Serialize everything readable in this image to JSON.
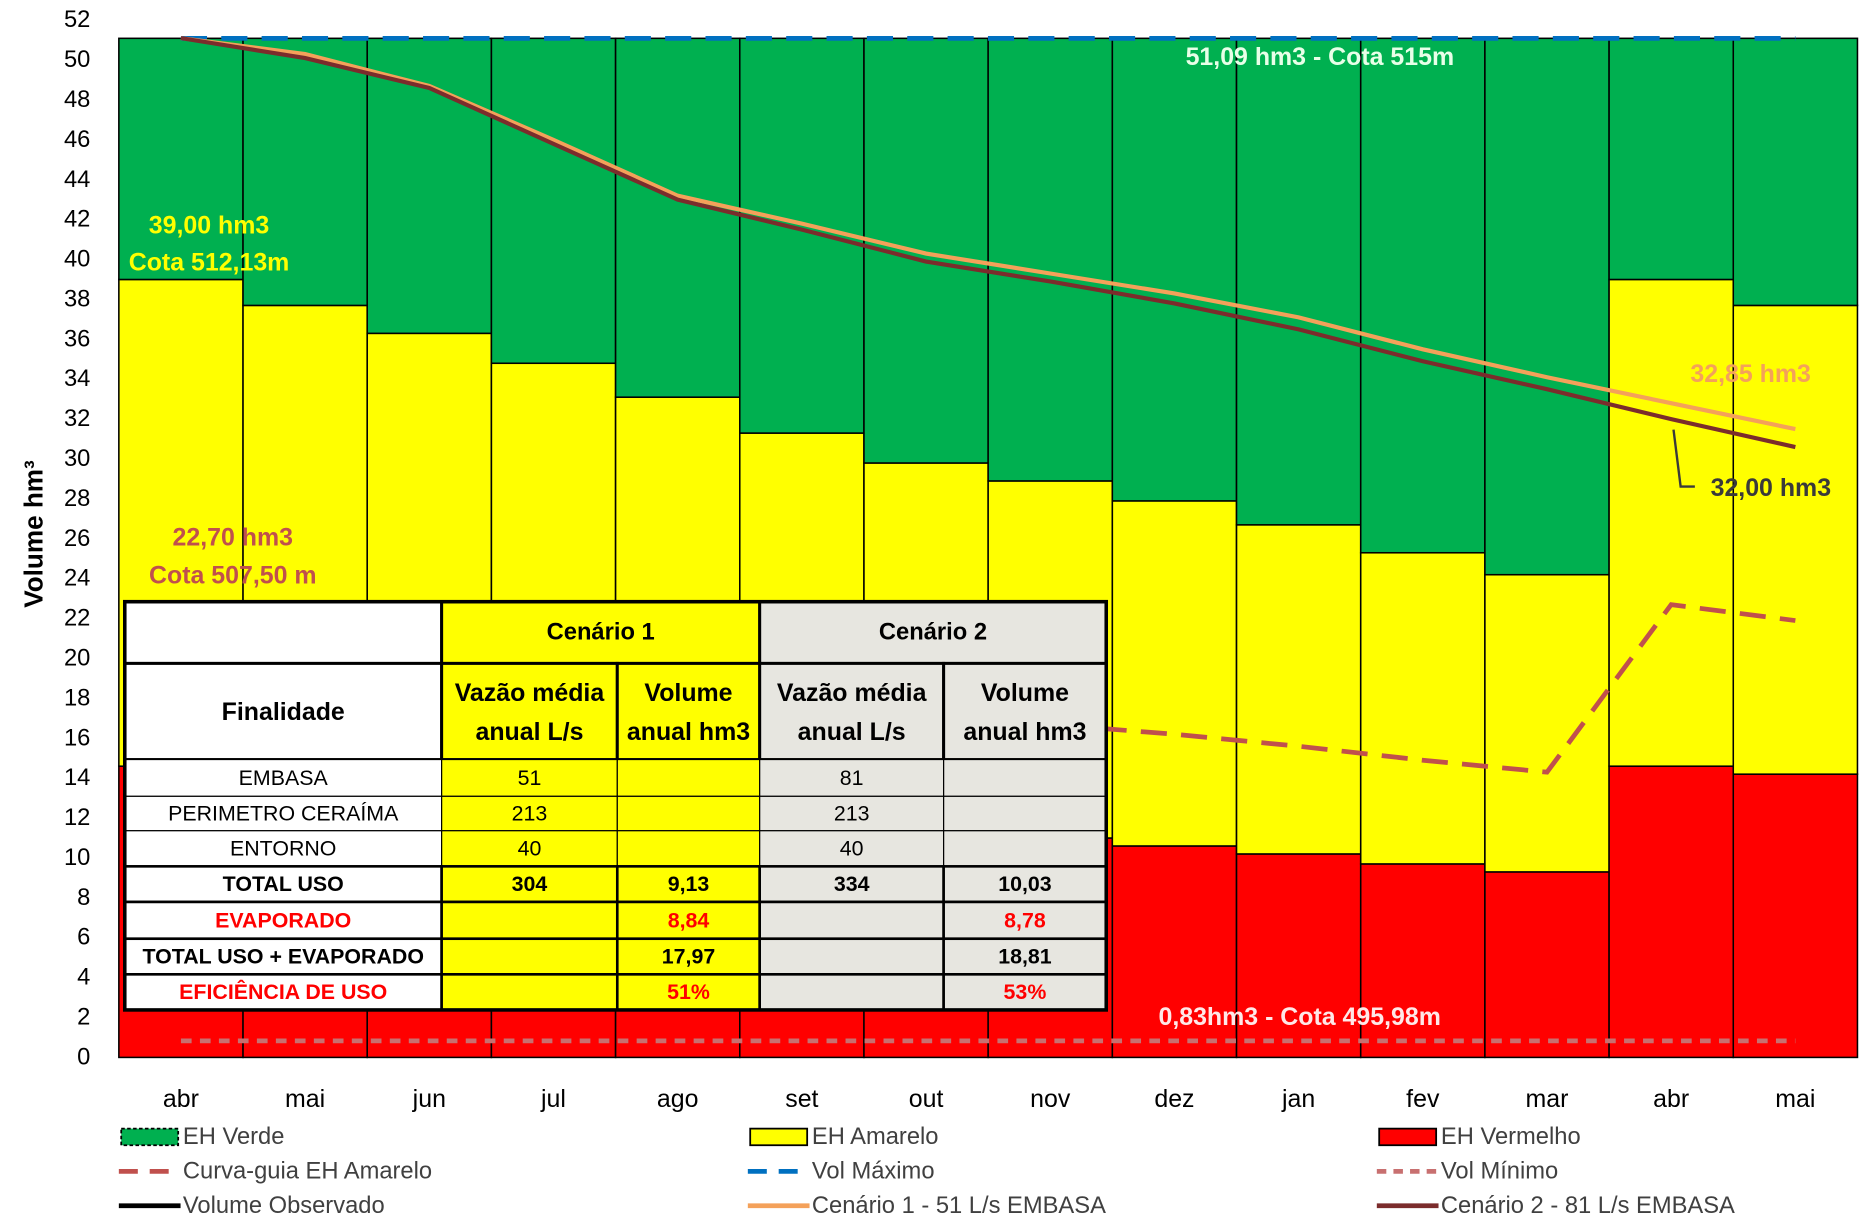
{
  "chart_data": {
    "type": "stacked-bar-line",
    "y_label": "Volume hm³",
    "categories": [
      "abr",
      "mai",
      "jun",
      "jul",
      "ago",
      "set",
      "out",
      "nov",
      "dez",
      "jan",
      "fev",
      "mar",
      "abr",
      "mai"
    ],
    "ylim": [
      0,
      52
    ],
    "yticks": [
      0,
      2,
      4,
      6,
      8,
      10,
      12,
      14,
      16,
      18,
      20,
      22,
      24,
      26,
      28,
      30,
      32,
      34,
      36,
      38,
      40,
      42,
      44,
      46,
      48,
      50,
      52
    ],
    "grid": false,
    "legend": "bottom",
    "series": [
      {
        "name": "EH Verde",
        "color": "#00b050",
        "style": "bar",
        "values": [
          12.09,
          13.39,
          14.79,
          16.29,
          17.99,
          19.79,
          21.29,
          22.19,
          23.19,
          24.39,
          25.79,
          26.89,
          12.09,
          13.39
        ]
      },
      {
        "name": "EH Amarelo",
        "color": "#ffff00",
        "style": "bar",
        "values": [
          24.4,
          23.6,
          22.7,
          21.8,
          20.6,
          19.3,
          18.3,
          17.9,
          17.3,
          16.5,
          15.6,
          14.9,
          24.4,
          23.5
        ]
      },
      {
        "name": "EH Vermelho",
        "color": "#ff0000",
        "style": "bar",
        "values": [
          14.6,
          14.1,
          13.6,
          13.0,
          12.5,
          12.0,
          11.5,
          11.0,
          10.6,
          10.2,
          9.7,
          9.3,
          14.6,
          14.2
        ]
      },
      {
        "name": "Curva-guia EH Amarelo",
        "color": "#c0504d",
        "style": "dashed",
        "values": [
          22.7,
          21.9,
          21.0,
          20.1,
          19.2,
          18.3,
          17.5,
          16.7,
          16.2,
          15.6,
          14.9,
          14.3,
          22.7,
          21.9
        ]
      },
      {
        "name": "Vol Máximo",
        "color": "#0070c0",
        "style": "dashed",
        "values": [
          51.09,
          51.09,
          51.09,
          51.09,
          51.09,
          51.09,
          51.09,
          51.09,
          51.09,
          51.09,
          51.09,
          51.09,
          51.09,
          51.09
        ]
      },
      {
        "name": "Vol Mínimo",
        "color": "#c87070",
        "style": "dotted",
        "values": [
          0.83,
          0.83,
          0.83,
          0.83,
          0.83,
          0.83,
          0.83,
          0.83,
          0.83,
          0.83,
          0.83,
          0.83,
          0.83,
          0.83
        ]
      },
      {
        "name": "Volume Observado",
        "color": "#000000",
        "style": "solid",
        "values": [
          null,
          null,
          null,
          null,
          null,
          null,
          null,
          null,
          null,
          null,
          null,
          null,
          null,
          null
        ]
      },
      {
        "name": "Cenário 1 - 51 L/s EMBASA",
        "color": "#f4a15a",
        "style": "solid",
        "values": [
          51.1,
          50.3,
          48.7,
          46.0,
          43.2,
          41.8,
          40.3,
          39.3,
          38.3,
          37.1,
          35.5,
          34.1,
          32.8,
          31.5
        ]
      },
      {
        "name": "Cenário 2 - 81 L/s EMBASA",
        "color": "#7b2c2c",
        "style": "solid",
        "values": [
          51.1,
          50.1,
          48.6,
          45.8,
          43.0,
          41.5,
          39.9,
          38.9,
          37.8,
          36.5,
          34.9,
          33.5,
          32.0,
          30.6
        ]
      }
    ],
    "annotations": [
      {
        "text": "51,09 hm3 - Cota 515m",
        "color": "#e8ffe8"
      },
      {
        "text": "39,00 hm3",
        "color": "#ffff00"
      },
      {
        "text": "Cota 512,13m",
        "color": "#ffff00"
      },
      {
        "text": "22,70 hm3",
        "color": "#c0504d"
      },
      {
        "text": "Cota 507,50 m",
        "color": "#c0504d"
      },
      {
        "text": "32,85 hm3",
        "color": "#f4a15a"
      },
      {
        "text": "32,00 hm3",
        "color": "#3a3a3a"
      },
      {
        "text": "0,83hm3 - Cota 495,98m",
        "color": "#ffe8e8"
      }
    ]
  },
  "table": {
    "header": [
      [
        null,
        "Cenário 1",
        "Cenário 2"
      ],
      [
        "Finalidade",
        [
          "Vazão média",
          "anual L/s"
        ],
        [
          "Volume",
          "anual hm3"
        ],
        [
          "Vazão média",
          "anual L/s"
        ],
        [
          "Volume",
          "anual hm3"
        ]
      ]
    ],
    "rows": [
      [
        "EMBASA",
        51,
        null,
        81,
        null
      ],
      [
        "PERIMETRO CERAÍMA",
        213,
        null,
        213,
        null
      ],
      [
        "ENTORNO",
        40,
        null,
        40,
        null
      ],
      [
        "TOTAL USO",
        304,
        "9,13",
        334,
        "10,03"
      ],
      [
        "EVAPORADO",
        null,
        "8,84",
        null,
        "8,78"
      ],
      [
        "TOTAL USO + EVAPORADO",
        null,
        "17,97",
        null,
        "18,81"
      ],
      [
        "EFICIÊNCIA DE USO",
        null,
        "51%",
        null,
        "53%"
      ]
    ]
  }
}
